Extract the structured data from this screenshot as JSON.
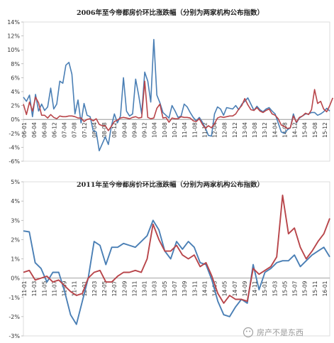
{
  "chart_data": [
    {
      "type": "line",
      "title": "2006年至今帝都房价环比涨跌幅（分别为两家机构公布指数）",
      "ylim": [
        -6,
        14
      ],
      "yticks": [
        "14%",
        "12%",
        "10%",
        "8%",
        "6%",
        "4%",
        "2%",
        "0%",
        "-2%",
        "-4%",
        "-6%"
      ],
      "x_labels": [
        "06-01",
        "06-04",
        "06-08",
        "06-12",
        "07-04",
        "07-08",
        "07-12",
        "08-04",
        "08-08",
        "08-12",
        "09-04",
        "09-08",
        "09-12",
        "10-04",
        "10-08",
        "10-12",
        "11-04",
        "11-08",
        "11-12",
        "12-04",
        "12-08",
        "12-12",
        "13-04",
        "13-08",
        "13-12",
        "14-04",
        "14-08",
        "14-12",
        "15-04",
        "15-08",
        "15-12"
      ],
      "legend": "none",
      "series": [
        {
          "color": "#4a7fb5",
          "values": [
            3.2,
            2.6,
            3.5,
            0.4,
            3.6,
            1.2,
            2.2,
            1.3,
            1.8,
            4.5,
            1.5,
            2.2,
            5.5,
            5.2,
            7.8,
            8.2,
            6.5,
            0.8,
            2.8,
            -0.5,
            2.3,
            0.6,
            0.4,
            -1.6,
            -1.8,
            -4.5,
            -3.5,
            -2.5,
            -3.6,
            -1.0,
            0.8,
            -0.5,
            0.5,
            6.0,
            1.2,
            0.5,
            0.8,
            5.8,
            3.5,
            0.8,
            6.8,
            5.5,
            2.5,
            11.5,
            3.5,
            2.4,
            1.0,
            0.6,
            0.2,
            2.0,
            1.2,
            0.3,
            0.5,
            2.2,
            1.8,
            1.0,
            0.3,
            -0.2,
            0.3,
            -0.4,
            -1.2,
            -2.3,
            -2.4,
            0.8,
            1.8,
            1.5,
            0.6,
            1.7,
            1.6,
            1.5,
            2.0,
            1.4,
            2.2,
            2.6,
            3.1,
            2.2,
            1.3,
            1.9,
            1.4,
            1.1,
            1.5,
            1.7,
            1.2,
            0.8,
            -0.5,
            -1.8,
            -2.0,
            -1.5,
            -1.2,
            0.8,
            -0.5,
            0.2,
            0.5,
            0.8,
            0.8,
            1.0,
            1.0,
            0.6,
            0.8,
            1.1,
            1.6,
            1.2
          ]
        },
        {
          "color": "#b8454a",
          "values": [
            2.2,
            0.7,
            2.5,
            1.2,
            3.2,
            2.4,
            0.6,
            0.6,
            0.2,
            0.7,
            0.3,
            0.1,
            0.5,
            0.4,
            0.4,
            0.5,
            0.5,
            0.4,
            0.2,
            0.2,
            -0.3,
            0.0,
            0.1,
            -0.2,
            0.1,
            -0.7,
            -0.9,
            -0.9,
            -1.6,
            -1.0,
            -0.3,
            -0.1,
            0.2,
            0.3,
            0.2,
            0.1,
            0.3,
            0.4,
            0.2,
            0.3,
            5.5,
            0.3,
            0.1,
            0.2,
            1.6,
            2.2,
            0.2,
            0.3,
            -0.4,
            0.2,
            0.1,
            0.1,
            0.4,
            0.3,
            0.3,
            0.2,
            -0.2,
            -0.3,
            0.1,
            -0.7,
            -1.3,
            -0.9,
            -1.2,
            -0.6,
            0.2,
            0.4,
            0.3,
            0.4,
            0.5,
            0.5,
            0.8,
            1.5,
            2.0,
            3.0,
            2.1,
            1.4,
            1.3,
            1.7,
            1.2,
            1.0,
            1.3,
            1.5,
            0.8,
            0.6,
            0.1,
            -0.8,
            -1.0,
            -1.3,
            -1.2,
            0.5,
            -0.4,
            0.3,
            0.5,
            0.9,
            0.7,
            1.4,
            4.3,
            2.3,
            2.6,
            1.5,
            1.1,
            2.0,
            3.1
          ]
        }
      ]
    },
    {
      "type": "line",
      "title": "2011年至今帝都房价环比涨跌幅（分别为两家机构公布指数）",
      "ylim": [
        -3,
        5
      ],
      "yticks": [
        "5%",
        "4%",
        "3%",
        "2%",
        "1%",
        "0%",
        "-1%",
        "-2%",
        "-3%"
      ],
      "x_labels": [
        "11-01",
        "11-03",
        "11-05",
        "11-07",
        "11-09",
        "11-11",
        "12-01",
        "12-03",
        "12-05",
        "12-07",
        "12-09",
        "12-11",
        "13-01",
        "13-03",
        "13-05",
        "13-07",
        "13-09",
        "13-11",
        "14-01",
        "14-03",
        "14-05",
        "14-07",
        "14-09",
        "14-11",
        "15-01",
        "15-03",
        "15-05",
        "15-07",
        "15-09",
        "15-11",
        "16-01"
      ],
      "legend": "none",
      "series": [
        {
          "color": "#4a7fb5",
          "values": [
            2.45,
            2.4,
            0.8,
            0.5,
            -0.2,
            0.3,
            0.3,
            -0.7,
            -1.9,
            -2.4,
            -1.2,
            0.0,
            1.9,
            1.7,
            0.7,
            1.6,
            1.6,
            1.8,
            1.7,
            1.6,
            1.9,
            2.2,
            3.0,
            2.5,
            1.4,
            1.0,
            1.9,
            1.5,
            1.9,
            1.6,
            0.8,
            0.7,
            -0.1,
            -1.2,
            -1.9,
            -2.0,
            -1.5,
            -1.1,
            -1.3,
            0.7,
            -0.6,
            0.3,
            0.5,
            0.8,
            0.9,
            0.9,
            1.2,
            0.6,
            0.9,
            1.2,
            1.4,
            1.6,
            1.1
          ]
        },
        {
          "color": "#b8454a",
          "values": [
            0.3,
            0.4,
            -0.1,
            0.0,
            0.1,
            -0.2,
            -0.1,
            -0.4,
            -0.7,
            -0.9,
            -0.8,
            0.0,
            0.3,
            0.4,
            -0.2,
            -0.2,
            0.1,
            0.3,
            0.3,
            0.4,
            0.3,
            1.0,
            2.8,
            2.0,
            1.4,
            1.4,
            1.7,
            1.2,
            1.0,
            1.2,
            0.6,
            0.8,
            0.1,
            -0.8,
            -1.3,
            -0.9,
            -1.1,
            -1.1,
            -1.2,
            0.5,
            0.2,
            0.4,
            0.6,
            1.1,
            4.3,
            2.3,
            2.6,
            1.6,
            1.0,
            1.4,
            1.9,
            2.3,
            3.1
          ]
        }
      ]
    }
  ],
  "watermark": "房产不是东西"
}
